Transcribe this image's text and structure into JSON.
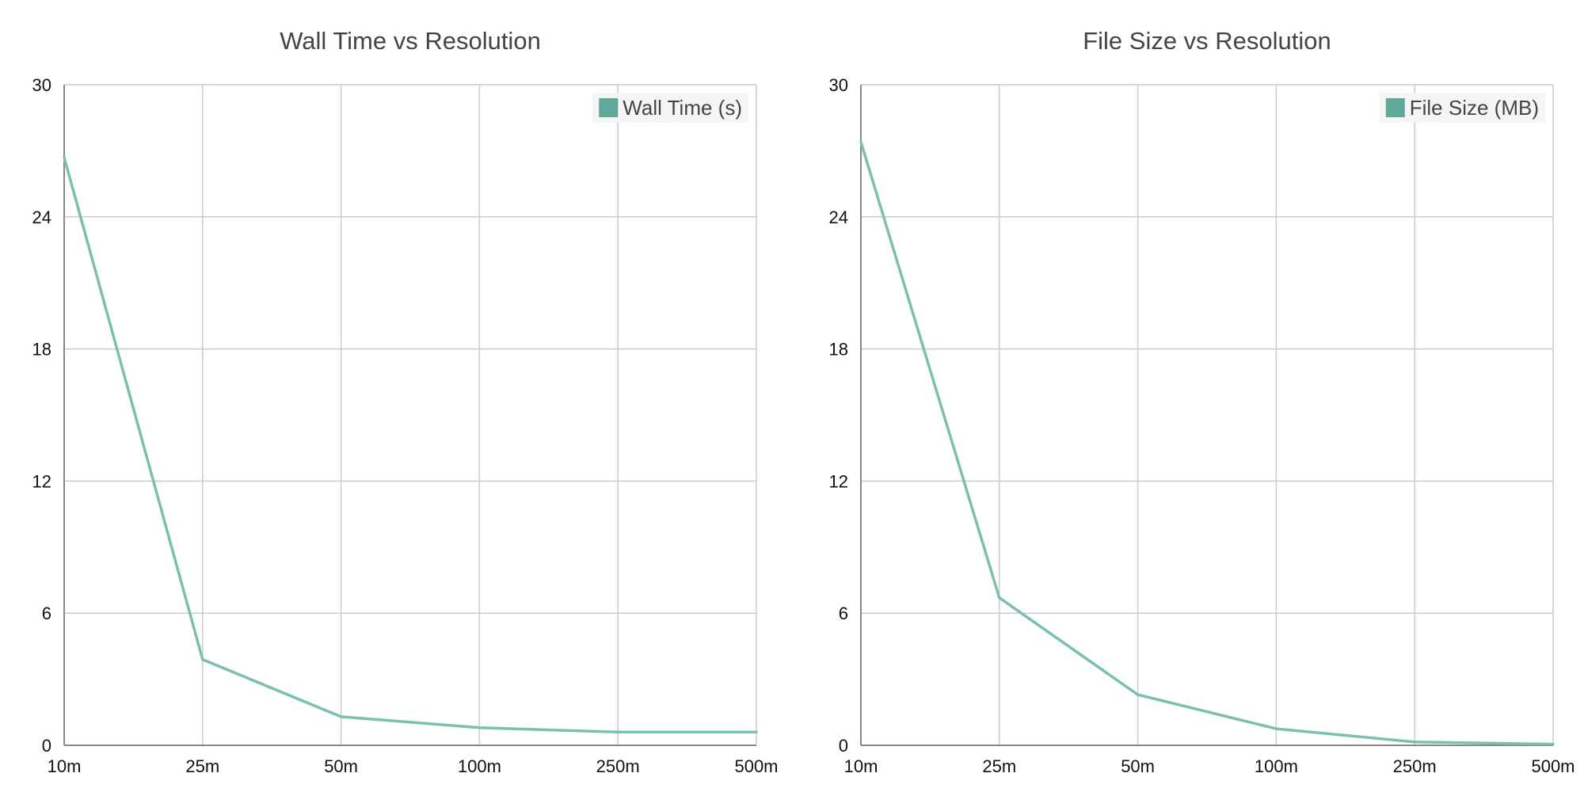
{
  "colors": {
    "line": "#7bbfb2",
    "legend_swatch": "#5fa89a",
    "grid": "#cccccc",
    "axis": "#888888",
    "title": "#444444",
    "tick": "#111111",
    "legend_bg": "#f5f5f5"
  },
  "chart_data": [
    {
      "type": "line",
      "title": "Wall Time vs Resolution",
      "categories": [
        "10m",
        "25m",
        "50m",
        "100m",
        "250m",
        "500m"
      ],
      "series": [
        {
          "name": "Wall Time (s)",
          "values": [
            26.7,
            3.9,
            1.3,
            0.8,
            0.6,
            0.6
          ]
        }
      ],
      "ylim": [
        0,
        30
      ],
      "yticks": [
        0,
        6,
        12,
        18,
        24,
        30
      ],
      "grid": true,
      "legend": "top-right"
    },
    {
      "type": "line",
      "title": "File Size vs Resolution",
      "categories": [
        "10m",
        "25m",
        "50m",
        "100m",
        "250m",
        "500m"
      ],
      "series": [
        {
          "name": "File Size (MB)",
          "values": [
            27.4,
            6.7,
            2.3,
            0.75,
            0.15,
            0.05
          ]
        }
      ],
      "ylim": [
        0,
        30
      ],
      "yticks": [
        0,
        6,
        12,
        18,
        24,
        30
      ],
      "grid": true,
      "legend": "top-right"
    }
  ]
}
